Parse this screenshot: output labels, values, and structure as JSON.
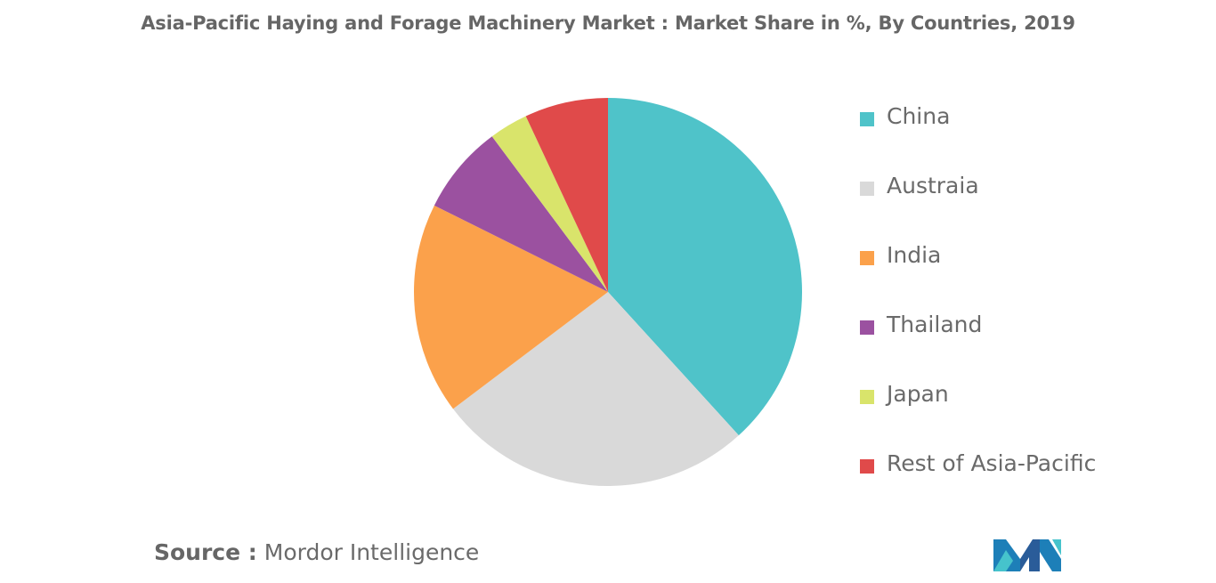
{
  "chart_data": {
    "type": "pie",
    "title": "Asia-Pacific Haying and Forage Machinery Market : Market Share in %, By Countries, 2019",
    "unit": "%",
    "categories": [
      "China",
      "Austraia",
      "India",
      "Thailand",
      "Japan",
      "Rest of Asia-Pacific"
    ],
    "values": [
      39,
      27,
      18,
      7.6,
      3.3,
      7.1
    ],
    "colors": [
      "#4fc3c9",
      "#d9d9d9",
      "#fba14b",
      "#9b51a0",
      "#d9e46b",
      "#e04a4a"
    ],
    "start_angle": "12 o'clock, clockwise",
    "legend_position": "right"
  },
  "source": {
    "label": "Source :",
    "text": "Mordor Intelligence"
  },
  "logo": {
    "icon": "mordor-intelligence-logo"
  }
}
